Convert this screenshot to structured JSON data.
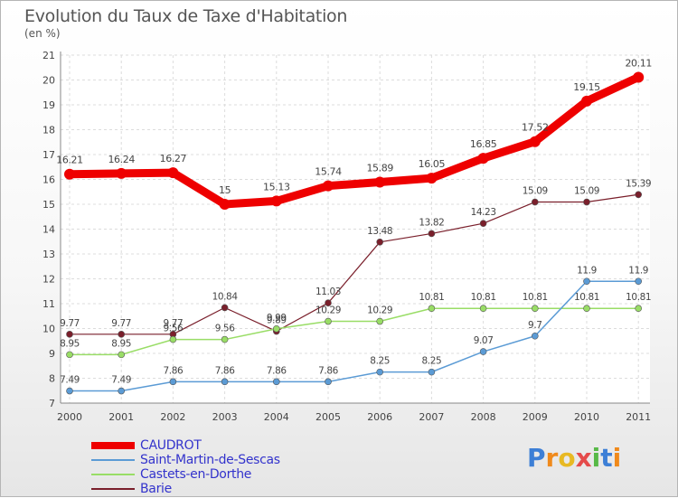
{
  "header": {
    "title": "Evolution du Taux de Taxe d'Habitation",
    "subtitle": "(en %)"
  },
  "logo": {
    "text": "Proxiti"
  },
  "chart_data": {
    "type": "line",
    "title": "Evolution du Taux de Taxe d'Habitation",
    "subtitle": "(en %)",
    "xlabel": "",
    "ylabel": "",
    "categories": [
      "2000",
      "2001",
      "2002",
      "2003",
      "2004",
      "2005",
      "2006",
      "2007",
      "2008",
      "2009",
      "2010",
      "2011"
    ],
    "ylim": [
      7,
      21
    ],
    "yticks": [
      "7",
      "8",
      "9",
      "10",
      "11",
      "12",
      "13",
      "14",
      "15",
      "16",
      "17",
      "18",
      "19",
      "20",
      "21"
    ],
    "grid": true,
    "legend_position": "bottom-left",
    "series": [
      {
        "name": "CAUDROT",
        "color": "#ee0000",
        "values": [
          16.21,
          16.24,
          16.27,
          15,
          15.13,
          15.74,
          15.89,
          16.05,
          16.85,
          17.52,
          19.15,
          20.11
        ],
        "labels": [
          "16.21",
          "16.24",
          "16.27",
          "15",
          "15.13",
          "15.74",
          "15.89",
          "16.05",
          "16.85",
          "17.52",
          "19.15",
          "20.11"
        ]
      },
      {
        "name": "Saint-Martin-de-Sescas",
        "color": "#5b9bd5",
        "values": [
          7.49,
          7.49,
          7.86,
          7.86,
          7.86,
          7.86,
          8.25,
          8.25,
          9.07,
          9.7,
          11.9,
          11.9
        ],
        "labels": [
          "7.49",
          "7.49",
          "7.86",
          "7.86",
          "7.86",
          "7.86",
          "8.25",
          "8.25",
          "9.07",
          "9.7",
          "11.9",
          "11.9"
        ]
      },
      {
        "name": "Castets-en-Dorthe",
        "color": "#99dd66",
        "values": [
          8.95,
          8.95,
          9.56,
          9.56,
          9.99,
          10.29,
          10.29,
          10.81,
          10.81,
          10.81,
          10.81,
          10.81
        ],
        "labels": [
          "8.95",
          "8.95",
          "9.56",
          "9.56",
          "9.99",
          "10.29",
          "10.29",
          "10.81",
          "10.81",
          "10.81",
          "10.81",
          "10.81"
        ]
      },
      {
        "name": "Barie",
        "color": "#7a1f2b",
        "values": [
          9.77,
          9.77,
          9.77,
          10.84,
          9.89,
          11.03,
          13.48,
          13.82,
          14.23,
          15.09,
          15.09,
          15.39
        ],
        "labels": [
          "9.77",
          "9.77",
          "9.77",
          "10.84",
          "9.89",
          "11.03",
          "13.48",
          "13.82",
          "14.23",
          "15.09",
          "15.09",
          "15.39"
        ]
      }
    ]
  }
}
